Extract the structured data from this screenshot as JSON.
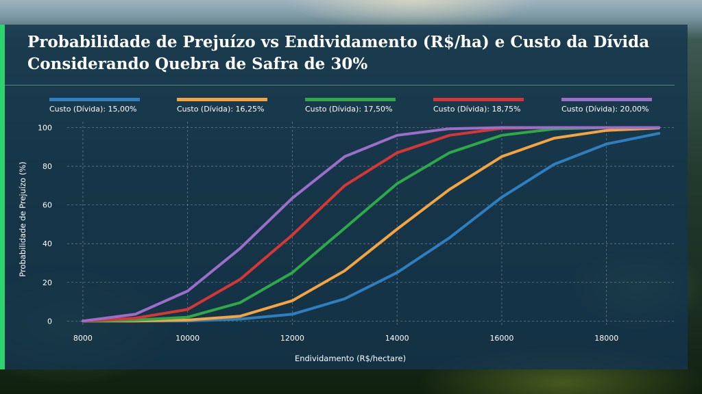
{
  "page": {
    "title_line1": "Probabilidade de Prejuízo vs Endividamento (R$/ha) e Custo da Dívida",
    "title_line2": "Considerando Quebra de Safra de 30%",
    "accent_color": "#2ed36e"
  },
  "chart_data": {
    "type": "line",
    "title": "Probabilidade de Prejuízo vs Endividamento (R$/ha) e Custo da Dívida Considerando Quebra de Safra de 30%",
    "xlabel": "Endividamento (R$/hectare)",
    "ylabel": "Probabilidade de Prejuízo (%)",
    "xlim": [
      7700,
      19300
    ],
    "ylim": [
      -2,
      103
    ],
    "xticks": [
      8000,
      10000,
      12000,
      14000,
      16000,
      18000
    ],
    "yticks": [
      0,
      20,
      40,
      60,
      80,
      100
    ],
    "grid": true,
    "legend_position": "top",
    "x": [
      8000,
      9000,
      10000,
      11000,
      12000,
      13000,
      14000,
      15000,
      16000,
      17000,
      18000,
      19000
    ],
    "series": [
      {
        "name": "Custo (Dívida): 15,00%",
        "color": "#2f7ec0",
        "values": [
          0,
          0,
          0,
          1,
          3.5,
          11.5,
          25,
          43,
          64,
          81,
          91.5,
          97
        ]
      },
      {
        "name": "Custo (Dívida): 16,25%",
        "color": "#f5a442",
        "values": [
          0,
          0,
          0.5,
          2.5,
          10.5,
          26,
          47.5,
          68,
          85,
          94.5,
          98.5,
          99.8
        ]
      },
      {
        "name": "Custo (Dívida): 17,50%",
        "color": "#2fa84a",
        "values": [
          0,
          0.5,
          2,
          9.5,
          25,
          48,
          71,
          87,
          96,
          99.3,
          100,
          100
        ]
      },
      {
        "name": "Custo (Dívida): 18,75%",
        "color": "#d83636",
        "values": [
          0,
          1.5,
          6,
          21.5,
          44.5,
          70,
          87,
          96,
          99.6,
          100,
          100,
          100
        ]
      },
      {
        "name": "Custo (Dívida): 20,00%",
        "color": "#9b6fc9",
        "values": [
          0,
          3.5,
          15.5,
          37.5,
          63.5,
          85,
          96,
          99.4,
          100,
          100,
          100,
          100
        ]
      }
    ]
  }
}
